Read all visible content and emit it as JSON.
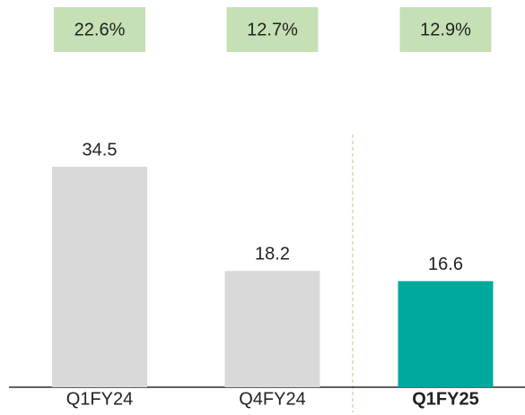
{
  "chart_data": {
    "type": "bar",
    "categories": [
      "Q1FY24",
      "Q4FY24",
      "Q1FY25"
    ],
    "values": [
      34.5,
      18.2,
      16.6
    ],
    "colors": [
      "#d9d9d9",
      "#d9d9d9",
      "#00a99d"
    ],
    "bold_categories": [
      false,
      false,
      true
    ],
    "annotations": [
      "22.6%",
      "12.7%",
      "12.9%"
    ],
    "annotation_color": "#c5e0b4"
  }
}
